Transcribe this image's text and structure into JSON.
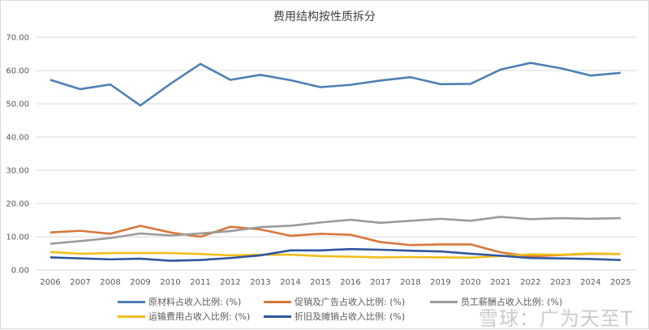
{
  "chart_data": {
    "type": "line",
    "title": "费用结构按性质拆分",
    "categories": [
      "2006",
      "2007",
      "2008",
      "2009",
      "2010",
      "2011",
      "2012",
      "2013",
      "2014",
      "2015",
      "2016",
      "2017",
      "2018",
      "2019",
      "2020",
      "2021",
      "2022",
      "2023",
      "2024",
      "2025"
    ],
    "ylim": [
      0,
      70
    ],
    "yticks": [
      "0.00",
      "10.00",
      "20.00",
      "30.00",
      "40.00",
      "50.00",
      "60.00",
      "70.00"
    ],
    "grid": true,
    "legend_position": "bottom",
    "series": [
      {
        "name": "原材料占收入比例:  (%)",
        "color": "#4e81b5",
        "values": [
          57.2,
          54.4,
          55.8,
          49.5,
          56.0,
          62.0,
          57.2,
          58.7,
          57.1,
          55.0,
          55.7,
          57.0,
          58.0,
          55.9,
          56.0,
          60.3,
          62.3,
          60.7,
          58.5,
          59.3
        ]
      },
      {
        "name": "促销及广告占收入比例:  (%)",
        "color": "#d9773a",
        "values": [
          11.3,
          11.8,
          10.9,
          13.3,
          11.3,
          10.0,
          13.0,
          12.2,
          10.3,
          10.9,
          10.6,
          8.4,
          7.5,
          7.7,
          7.7,
          5.3,
          4.1,
          4.5,
          4.9,
          4.8
        ]
      },
      {
        "name": "员工薪酬占收入比例:  (%)",
        "color": "#9b9b9b",
        "values": [
          7.9,
          8.7,
          9.6,
          11.0,
          10.4,
          11.0,
          11.7,
          12.9,
          13.3,
          14.3,
          15.1,
          14.2,
          14.8,
          15.4,
          14.8,
          16.0,
          15.3,
          15.6,
          15.4,
          15.6
        ]
      },
      {
        "name": "运输费用占收入比例:  (%)",
        "color": "#f2be1a",
        "values": [
          5.4,
          4.9,
          5.1,
          5.1,
          5.1,
          4.8,
          4.4,
          4.6,
          4.6,
          4.2,
          4.0,
          3.8,
          3.9,
          3.8,
          3.7,
          4.2,
          4.7,
          4.6,
          5.0,
          4.8
        ]
      },
      {
        "name": "折旧及摊销占收入比例:  (%)",
        "color": "#2f56a0",
        "values": [
          3.8,
          3.5,
          3.2,
          3.4,
          2.8,
          3.0,
          3.6,
          4.4,
          5.9,
          5.9,
          6.3,
          6.1,
          5.8,
          5.6,
          4.9,
          4.3,
          3.6,
          3.5,
          3.3,
          3.0
        ]
      }
    ]
  },
  "watermark": "雪球：广为天至T"
}
